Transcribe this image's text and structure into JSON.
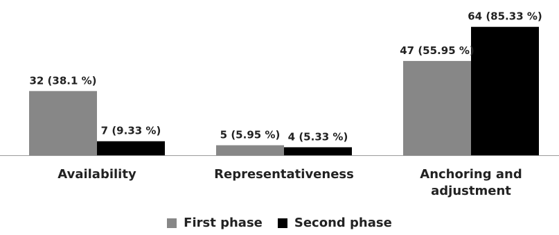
{
  "chart_data": {
    "type": "bar",
    "categories": [
      [
        "Availability"
      ],
      [
        "Representativeness"
      ],
      [
        "Anchoring and",
        "adjustment"
      ]
    ],
    "series": [
      {
        "name": "First phase",
        "color": "#878787",
        "values": [
          32,
          5,
          47
        ],
        "labels": [
          "32 (38.1 %)",
          "5 (5.95 %)",
          "47 (55.95 %)"
        ]
      },
      {
        "name": "Second phase",
        "color": "#000000",
        "values": [
          7,
          4,
          64
        ],
        "labels": [
          "7 (9.33 %)",
          "4 (5.33 %)",
          "64 (85.33 %)"
        ]
      }
    ],
    "ylim": [
      0,
      70
    ],
    "grid": false,
    "legend_position": "bottom"
  }
}
